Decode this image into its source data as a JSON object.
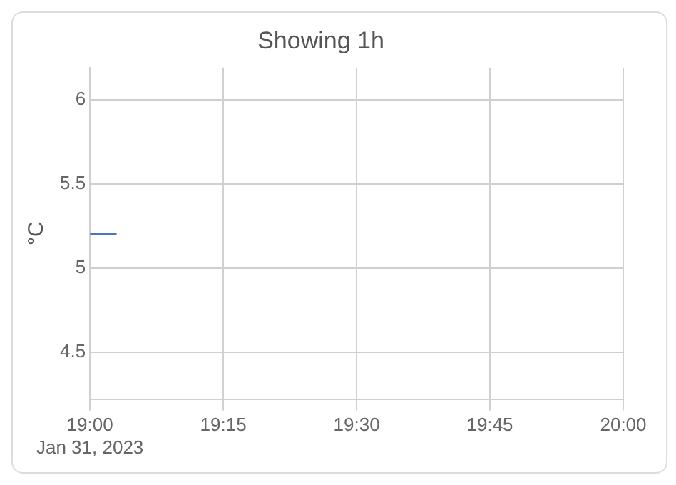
{
  "chart_data": {
    "type": "line",
    "title": "Showing 1h",
    "ylabel": "°C",
    "x": [
      19,
      19.05
    ],
    "series": [
      {
        "color": "#4a7ab5",
        "values": [
          5.2,
          5.2
        ]
      }
    ],
    "xlim": [
      19,
      20
    ],
    "xticks": [
      {
        "value": 19,
        "label": "19:00\nJan 31, 2023"
      },
      {
        "value": 19.25,
        "label": "19:15"
      },
      {
        "value": 19.5,
        "label": "19:30"
      },
      {
        "value": 19.75,
        "label": "19:45"
      },
      {
        "value": 20,
        "label": "20:00"
      }
    ],
    "ylim": [
      4.22,
      6.19
    ],
    "yticks": [
      4.5,
      5,
      5.5,
      6
    ],
    "grid": true,
    "legend": false,
    "marker": "none"
  }
}
